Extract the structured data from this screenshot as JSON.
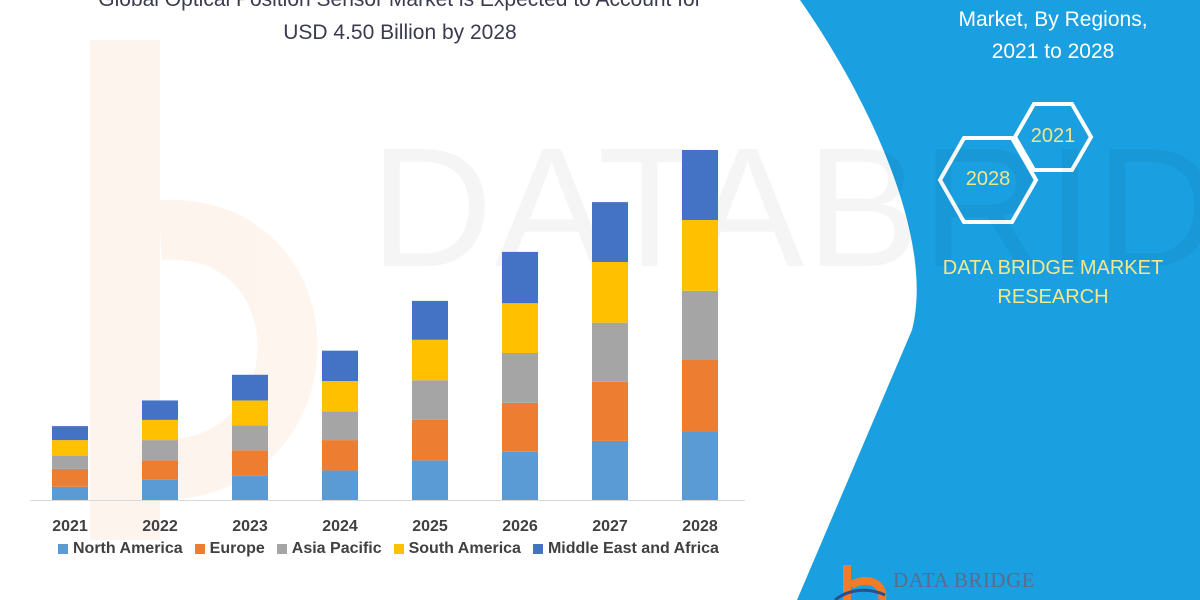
{
  "header": {
    "title_line1": "Global Optical Position Sensor Market is Expected to Account for",
    "title_line2": "USD 4.50 Billion by 2028"
  },
  "side_panel": {
    "subtitle_line1": "Market, By Regions,",
    "subtitle_line2": "2021 to 2028",
    "hex_start": "2021",
    "hex_end": "2028",
    "brand_line1": "DATA BRIDGE MARKET",
    "brand_line2": "RESEARCH",
    "logo_text": "DATA BRIDGE",
    "background_color": "#1a9fe0"
  },
  "watermark": "DATABRIDGE",
  "chart_data": {
    "type": "bar",
    "stacked": true,
    "categories": [
      "2021",
      "2022",
      "2023",
      "2024",
      "2025",
      "2026",
      "2027",
      "2028"
    ],
    "series": [
      {
        "name": "North America",
        "color": "#5b9bd5",
        "values": [
          0.17,
          0.26,
          0.31,
          0.38,
          0.51,
          0.62,
          0.76,
          0.88
        ]
      },
      {
        "name": "Europe",
        "color": "#ed7d31",
        "values": [
          0.23,
          0.25,
          0.33,
          0.39,
          0.52,
          0.63,
          0.76,
          0.92
        ]
      },
      {
        "name": "Asia Pacific",
        "color": "#a5a5a5",
        "values": [
          0.17,
          0.26,
          0.32,
          0.37,
          0.51,
          0.64,
          0.76,
          0.89
        ]
      },
      {
        "name": "South America",
        "color": "#ffc000",
        "values": [
          0.2,
          0.26,
          0.32,
          0.39,
          0.52,
          0.64,
          0.78,
          0.91
        ]
      },
      {
        "name": "Middle East and Africa",
        "color": "#4472c4",
        "values": [
          0.18,
          0.25,
          0.33,
          0.39,
          0.5,
          0.66,
          0.77,
          0.9
        ]
      }
    ],
    "ylim": [
      0,
      4.5
    ],
    "grid": false,
    "legend_position": "bottom",
    "xlabel": "",
    "ylabel": ""
  }
}
